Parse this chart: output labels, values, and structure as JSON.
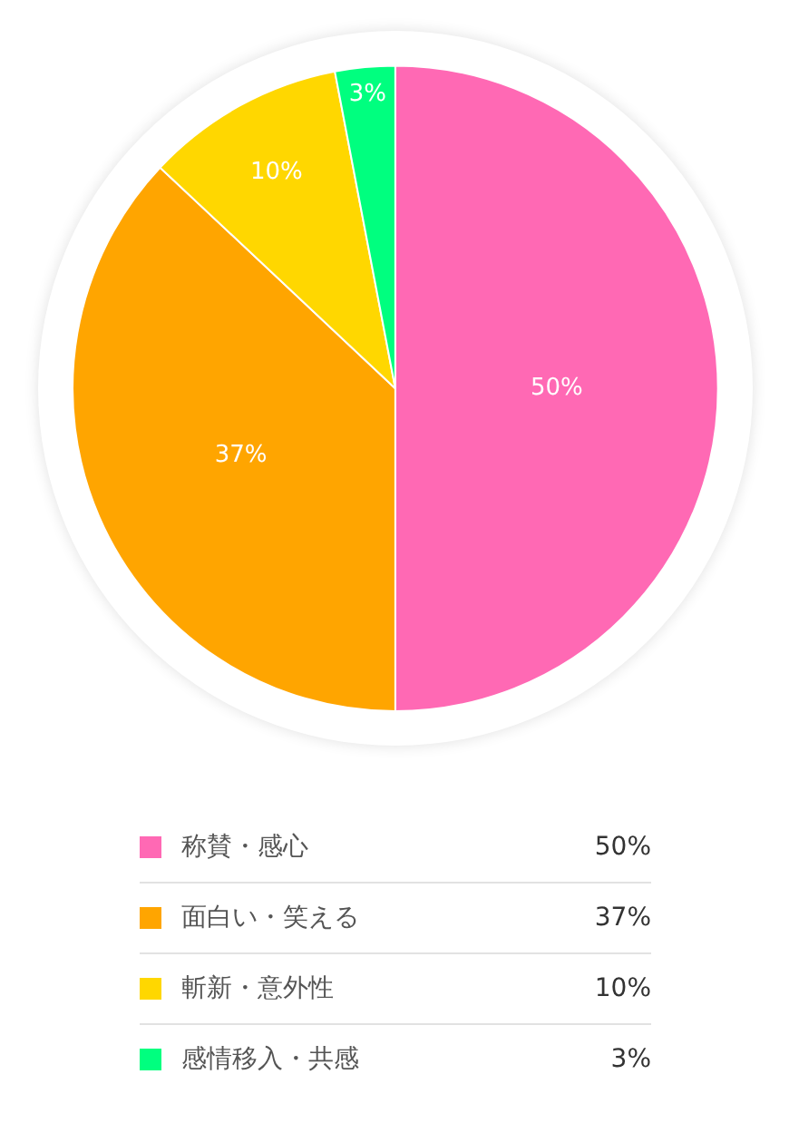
{
  "chart_data": {
    "type": "pie",
    "categories": [
      "称賛・感心",
      "面白い・笑える",
      "斬新・意外性",
      "感情移入・共感"
    ],
    "values": [
      50,
      37,
      10,
      3
    ],
    "colors": [
      "#ff69b4",
      "#ffa500",
      "#ffd700",
      "#00ff7f"
    ],
    "value_labels": [
      "50%",
      "37%",
      "10%",
      "3%"
    ],
    "legend": "bottom"
  }
}
